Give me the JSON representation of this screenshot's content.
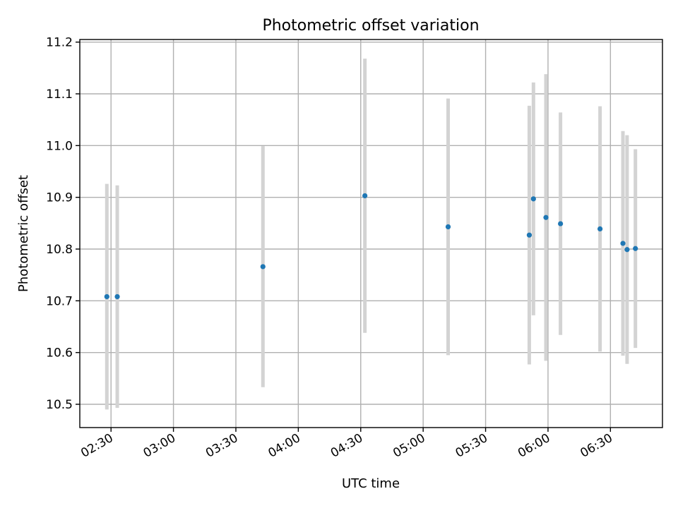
{
  "chart_data": {
    "type": "scatter",
    "title": "Photometric offset variation",
    "xlabel": "UTC time",
    "ylabel": "Photometric offset",
    "xlim": [
      "02:15",
      "06:55"
    ],
    "ylim": [
      10.455,
      11.205
    ],
    "grid": true,
    "x_ticks": [
      "02:30",
      "03:00",
      "03:30",
      "04:00",
      "04:30",
      "05:00",
      "05:30",
      "06:00",
      "06:30"
    ],
    "y_ticks": [
      "10.5",
      "10.6",
      "10.7",
      "10.8",
      "10.9",
      "11.0",
      "11.1",
      "11.2"
    ],
    "colors": {
      "point": "#1f77b4",
      "errorbar": "#d3d3d3",
      "grid": "#b0b0b0"
    },
    "series": [
      {
        "points": [
          {
            "x": "02:28",
            "y": 10.708,
            "yerr": 0.218
          },
          {
            "x": "02:33",
            "y": 10.708,
            "yerr": 0.215
          },
          {
            "x": "03:43",
            "y": 10.766,
            "yerr": 0.233
          },
          {
            "x": "04:32",
            "y": 10.903,
            "yerr": 0.265
          },
          {
            "x": "05:12",
            "y": 10.843,
            "yerr": 0.248
          },
          {
            "x": "05:51",
            "y": 10.827,
            "yerr": 0.25
          },
          {
            "x": "05:53",
            "y": 10.897,
            "yerr": 0.225
          },
          {
            "x": "05:59",
            "y": 10.861,
            "yerr": 0.277
          },
          {
            "x": "06:06",
            "y": 10.849,
            "yerr": 0.215
          },
          {
            "x": "06:25",
            "y": 10.839,
            "yerr": 0.237
          },
          {
            "x": "06:36",
            "y": 10.811,
            "yerr": 0.217
          },
          {
            "x": "06:38",
            "y": 10.799,
            "yerr": 0.221
          },
          {
            "x": "06:42",
            "y": 10.801,
            "yerr": 0.192
          }
        ]
      }
    ]
  }
}
